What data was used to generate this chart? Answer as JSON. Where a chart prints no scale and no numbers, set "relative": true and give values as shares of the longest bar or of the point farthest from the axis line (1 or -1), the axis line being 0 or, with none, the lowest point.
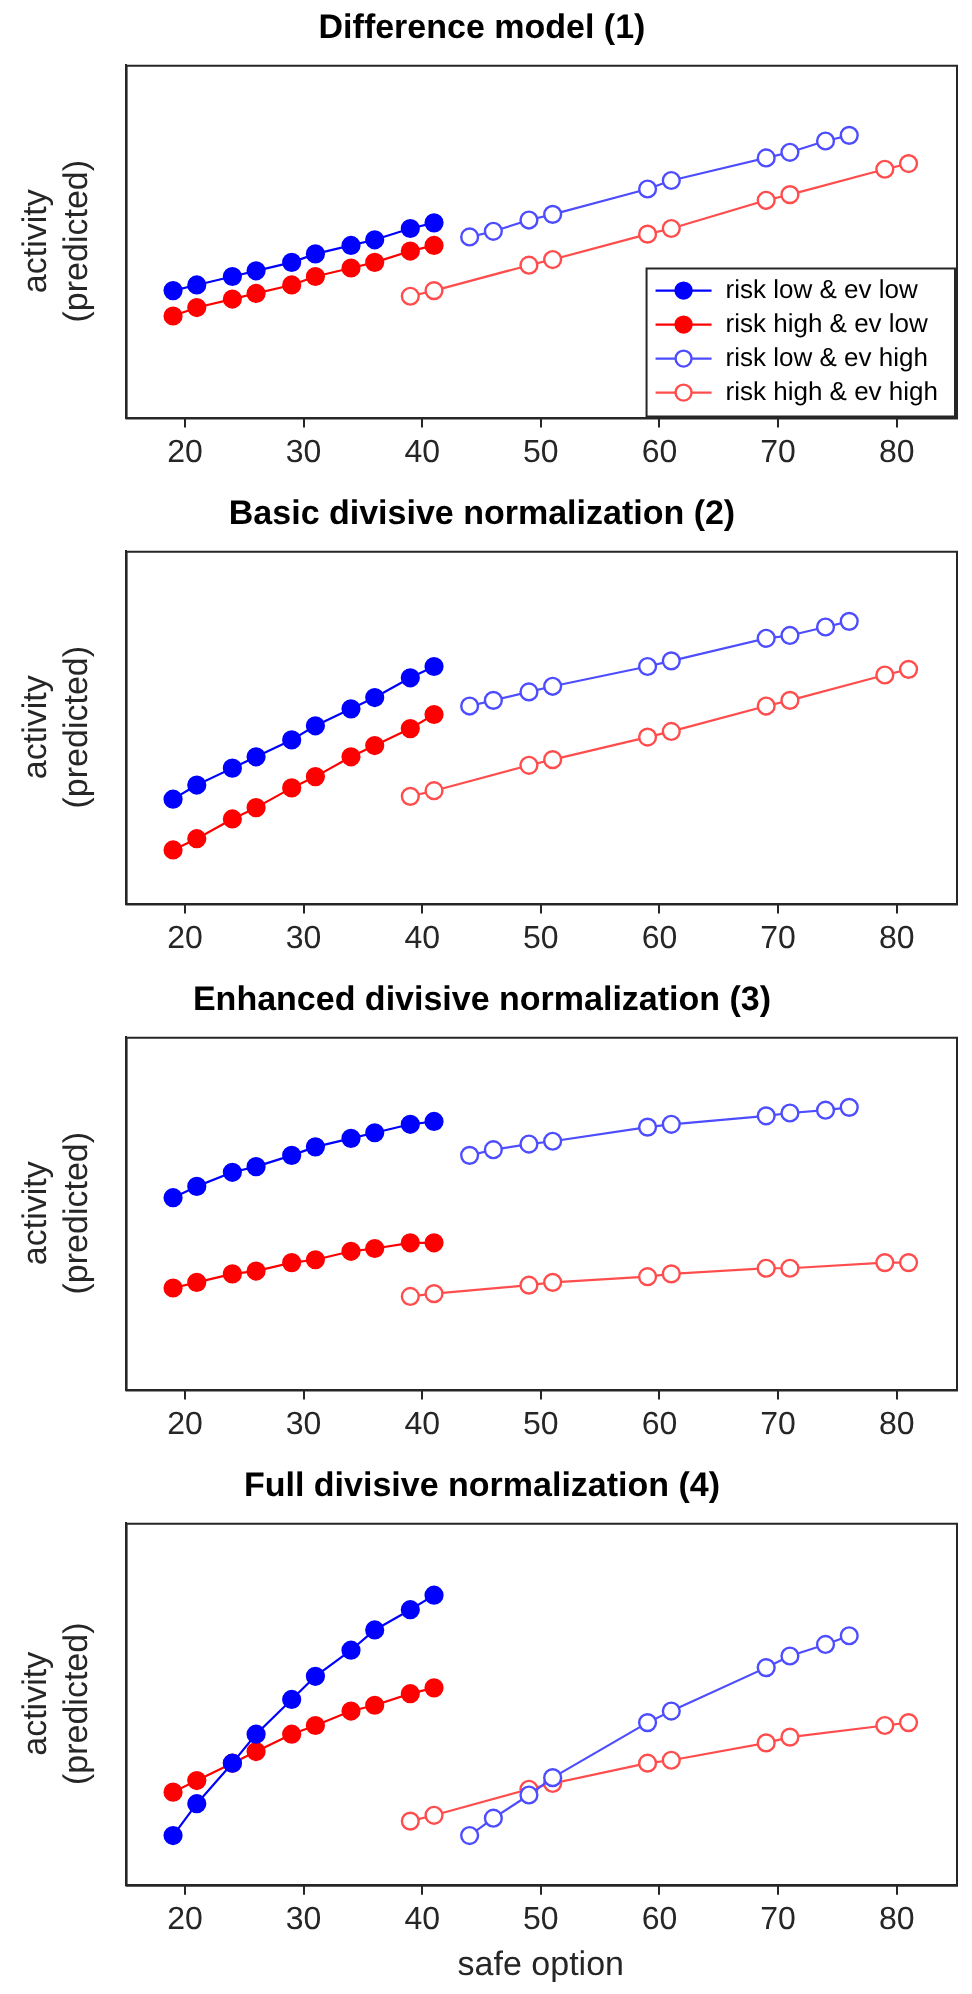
{
  "chart_data": [
    {
      "type": "line",
      "title": "Difference model (1)",
      "ylabel": "activity (predicted)",
      "relative": true,
      "xlim": [
        15,
        85
      ],
      "xticks": [
        20,
        30,
        40,
        50,
        60,
        70,
        80
      ],
      "grid": false,
      "legend": "bottom right",
      "line_style": "solid",
      "series": [
        {
          "name": "risk low & ev low",
          "color": "#0000ff",
          "marker": "circle",
          "x": [
            19,
            21,
            24,
            26,
            29,
            31,
            34,
            36,
            39,
            41
          ],
          "values": [
            0.45,
            0.47,
            0.5,
            0.52,
            0.55,
            0.58,
            0.61,
            0.63,
            0.67,
            0.69
          ]
        },
        {
          "name": "risk high & ev low",
          "color": "#ff0000",
          "marker": "circle",
          "x": [
            19,
            21,
            24,
            26,
            29,
            31,
            34,
            36,
            39,
            41
          ],
          "values": [
            0.36,
            0.39,
            0.42,
            0.44,
            0.47,
            0.5,
            0.53,
            0.55,
            0.59,
            0.61
          ]
        },
        {
          "name": "risk low & ev high",
          "color": "#4d4dff",
          "marker": "open_circle",
          "x": [
            44,
            46,
            49,
            51,
            59,
            61,
            69,
            71,
            74,
            76
          ],
          "values": [
            0.64,
            0.66,
            0.7,
            0.72,
            0.81,
            0.84,
            0.92,
            0.94,
            0.98,
            1
          ]
        },
        {
          "name": "risk high & ev high",
          "color": "#ff4d4d",
          "marker": "open_circle",
          "x": [
            39,
            41,
            49,
            51,
            59,
            61,
            69,
            71,
            79,
            81
          ],
          "values": [
            0.43,
            0.45,
            0.54,
            0.56,
            0.65,
            0.67,
            0.77,
            0.79,
            0.88,
            0.9
          ]
        }
      ]
    },
    {
      "type": "line",
      "title": "Basic divisive normalization (2)",
      "ylabel": "activity (predicted)",
      "relative": true,
      "xlim": [
        15,
        85
      ],
      "xticks": [
        20,
        30,
        40,
        50,
        60,
        70,
        80
      ],
      "grid": false,
      "line_style": "solid",
      "series": [
        {
          "color": "#0000ff",
          "marker": "circle",
          "x": [
            19,
            21,
            24,
            26,
            29,
            31,
            34,
            36,
            39,
            41
          ],
          "values": [
            0.37,
            0.42,
            0.48,
            0.52,
            0.58,
            0.63,
            0.69,
            0.73,
            0.8,
            0.84
          ]
        },
        {
          "color": "#ff0000",
          "marker": "circle",
          "x": [
            19,
            21,
            24,
            26,
            29,
            31,
            34,
            36,
            39,
            41
          ],
          "values": [
            0.19,
            0.23,
            0.3,
            0.34,
            0.41,
            0.45,
            0.52,
            0.56,
            0.62,
            0.67
          ]
        },
        {
          "color": "#4d4dff",
          "marker": "open_circle",
          "x": [
            44,
            46,
            49,
            51,
            59,
            61,
            69,
            71,
            74,
            76
          ],
          "values": [
            0.7,
            0.72,
            0.75,
            0.77,
            0.84,
            0.86,
            0.94,
            0.95,
            0.98,
            1
          ]
        },
        {
          "color": "#ff4d4d",
          "marker": "open_circle",
          "x": [
            39,
            41,
            49,
            51,
            59,
            61,
            69,
            71,
            79,
            81
          ],
          "values": [
            0.38,
            0.4,
            0.49,
            0.51,
            0.59,
            0.61,
            0.7,
            0.72,
            0.81,
            0.83
          ]
        }
      ]
    },
    {
      "type": "line",
      "title": "Enhanced divisive normalization (3)",
      "ylabel": "activity (predicted)",
      "relative": true,
      "xlim": [
        15,
        85
      ],
      "xticks": [
        20,
        30,
        40,
        50,
        60,
        70,
        80
      ],
      "grid": false,
      "line_style": "solid",
      "series": [
        {
          "color": "#0000ff",
          "marker": "circle",
          "x": [
            19,
            21,
            24,
            26,
            29,
            31,
            34,
            36,
            39,
            41
          ],
          "values": [
            0.68,
            0.72,
            0.77,
            0.79,
            0.83,
            0.86,
            0.89,
            0.91,
            0.94,
            0.95
          ]
        },
        {
          "color": "#ff0000",
          "marker": "circle",
          "x": [
            19,
            21,
            24,
            26,
            29,
            31,
            34,
            36,
            39,
            41
          ],
          "values": [
            0.36,
            0.38,
            0.41,
            0.42,
            0.45,
            0.46,
            0.49,
            0.5,
            0.52,
            0.52
          ]
        },
        {
          "color": "#4d4dff",
          "marker": "open_circle",
          "x": [
            44,
            46,
            49,
            51,
            59,
            61,
            69,
            71,
            74,
            76
          ],
          "values": [
            0.83,
            0.85,
            0.87,
            0.88,
            0.93,
            0.94,
            0.97,
            0.98,
            0.99,
            1
          ]
        },
        {
          "color": "#ff4d4d",
          "marker": "open_circle",
          "x": [
            39,
            41,
            49,
            51,
            59,
            61,
            69,
            71,
            79,
            81
          ],
          "values": [
            0.33,
            0.34,
            0.37,
            0.38,
            0.4,
            0.41,
            0.43,
            0.43,
            0.45,
            0.45
          ]
        }
      ]
    },
    {
      "type": "line",
      "title": "Full divisive normalization (4)",
      "xlabel": "safe option",
      "ylabel": "activity (predicted)",
      "relative": true,
      "xlim": [
        15,
        85
      ],
      "xticks": [
        20,
        30,
        40,
        50,
        60,
        70,
        80
      ],
      "grid": false,
      "line_style": "solid",
      "series": [
        {
          "color": "#0000ff",
          "marker": "circle",
          "x": [
            19,
            21,
            24,
            26,
            29,
            31,
            34,
            36,
            39,
            41
          ],
          "values": [
            0.17,
            0.28,
            0.42,
            0.52,
            0.64,
            0.72,
            0.81,
            0.88,
            0.95,
            1
          ]
        },
        {
          "color": "#ff0000",
          "marker": "circle",
          "x": [
            19,
            21,
            24,
            26,
            29,
            31,
            34,
            36,
            39,
            41
          ],
          "values": [
            0.32,
            0.36,
            0.42,
            0.46,
            0.52,
            0.55,
            0.6,
            0.62,
            0.66,
            0.68
          ]
        },
        {
          "color": "#4d4dff",
          "marker": "open_circle",
          "x": [
            44,
            46,
            49,
            51,
            59,
            61,
            69,
            71,
            74,
            76
          ],
          "values": [
            0.17,
            0.23,
            0.31,
            0.37,
            0.56,
            0.6,
            0.75,
            0.79,
            0.83,
            0.86
          ]
        },
        {
          "color": "#ff4d4d",
          "marker": "open_circle",
          "x": [
            39,
            41,
            49,
            51,
            59,
            61,
            69,
            71,
            79,
            81
          ],
          "values": [
            0.22,
            0.24,
            0.33,
            0.35,
            0.42,
            0.43,
            0.49,
            0.51,
            0.55,
            0.56
          ]
        }
      ]
    }
  ]
}
